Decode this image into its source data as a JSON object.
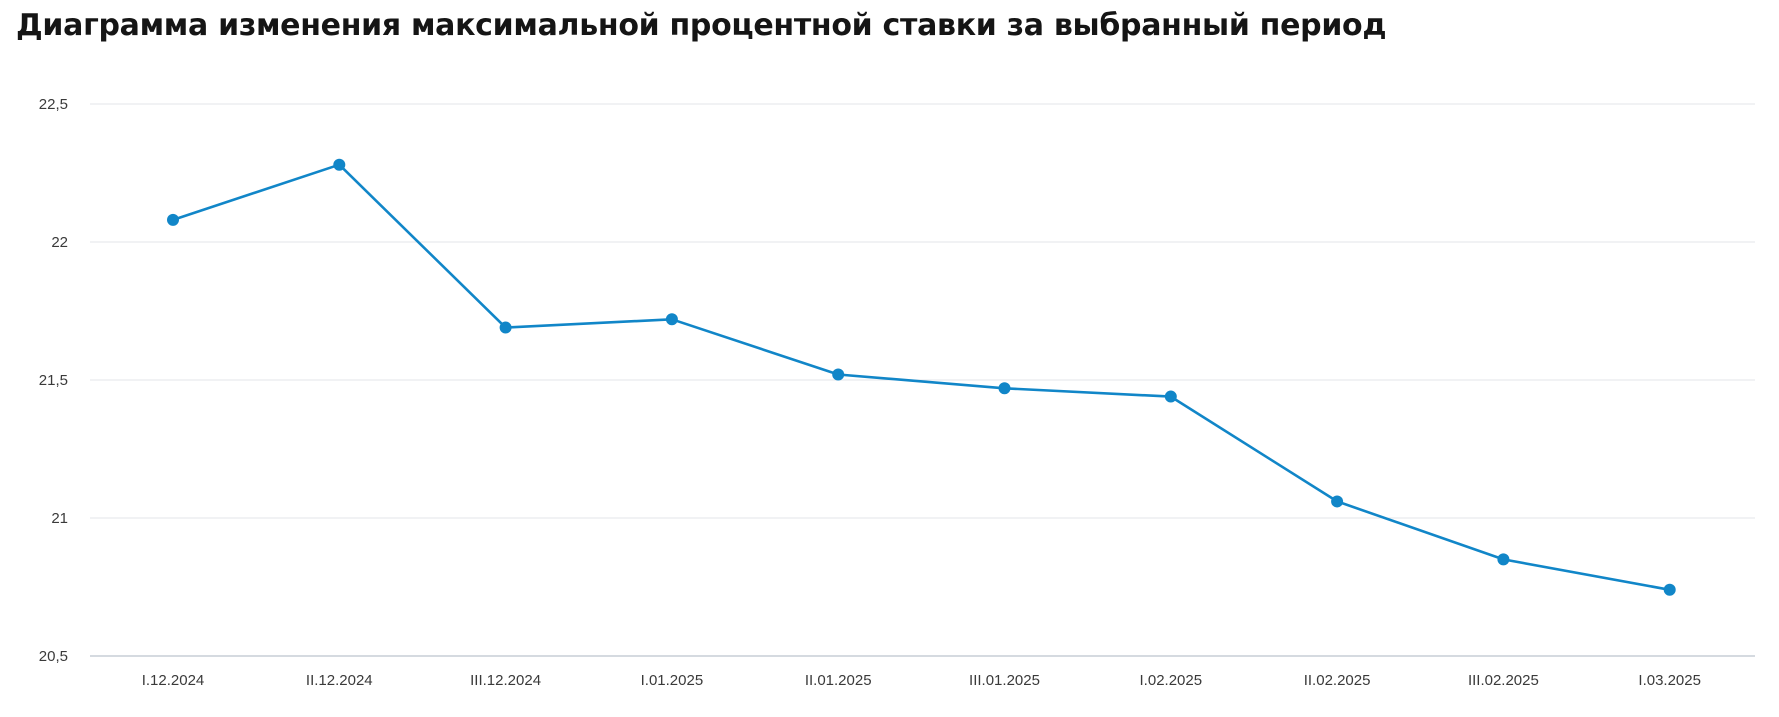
{
  "title": "Диаграмма изменения максимальной процентной ставки за выбранный период",
  "colors": {
    "line": "#1186c8",
    "grid": "#e3e6ea",
    "axis": "#c7cdd6",
    "text": "#3a3a3a"
  },
  "chart_data": {
    "type": "line",
    "title": "Диаграмма изменения максимальной процентной ставки за выбранный период",
    "xlabel": "",
    "ylabel": "",
    "categories": [
      "I.12.2024",
      "II.12.2024",
      "III.12.2024",
      "I.01.2025",
      "II.01.2025",
      "III.01.2025",
      "I.02.2025",
      "II.02.2025",
      "III.02.2025",
      "I.03.2025"
    ],
    "series": [
      {
        "values": [
          22.08,
          22.28,
          21.69,
          21.72,
          21.52,
          21.47,
          21.44,
          21.06,
          20.85,
          20.74
        ]
      }
    ],
    "ylim": [
      20.5,
      22.5
    ],
    "yticks": [
      22.5,
      22,
      21.5,
      21,
      20.5
    ],
    "ytick_labels": [
      "22,5",
      "22",
      "21,5",
      "21",
      "20,5"
    ],
    "grid": true,
    "markers": true
  }
}
